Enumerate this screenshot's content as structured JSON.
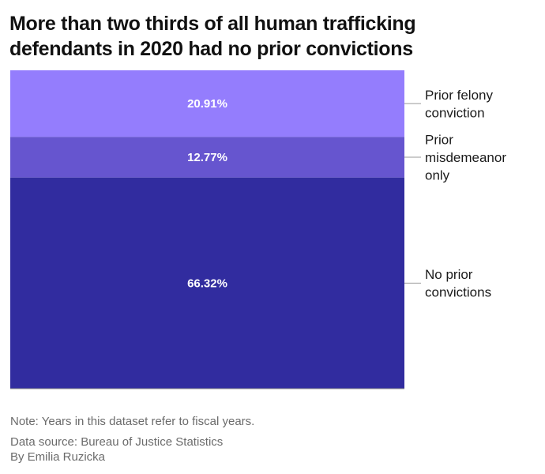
{
  "chart_data": {
    "type": "bar",
    "subtype": "stacked-100",
    "title": "More than two thirds of all human trafficking defendants in 2020 had no prior convictions",
    "xlabel": "",
    "ylabel": "",
    "ylim": [
      0,
      100
    ],
    "grid": false,
    "legend": "right (direct labels)",
    "categories": [
      "2020"
    ],
    "series": [
      {
        "name": "Prior felony conviction",
        "label_lines": [
          "Prior felony",
          "conviction"
        ],
        "values": [
          20.91
        ],
        "data_label": "20.91%",
        "color": "#947dfd"
      },
      {
        "name": "Prior misdemeanor only",
        "label_lines": [
          "Prior",
          "misdemeanor",
          "only"
        ],
        "values": [
          12.77
        ],
        "data_label": "12.77%",
        "color": "#6655cf"
      },
      {
        "name": "No prior convictions",
        "label_lines": [
          "No prior",
          "convictions"
        ],
        "values": [
          66.32
        ],
        "data_label": "66.32%",
        "color": "#312c9f"
      }
    ]
  },
  "footer": {
    "note": "Note: Years in this dataset refer to fiscal years.",
    "source": "Data source: Bureau of Justice Statistics",
    "byline": "By Emilia Ruzicka"
  }
}
